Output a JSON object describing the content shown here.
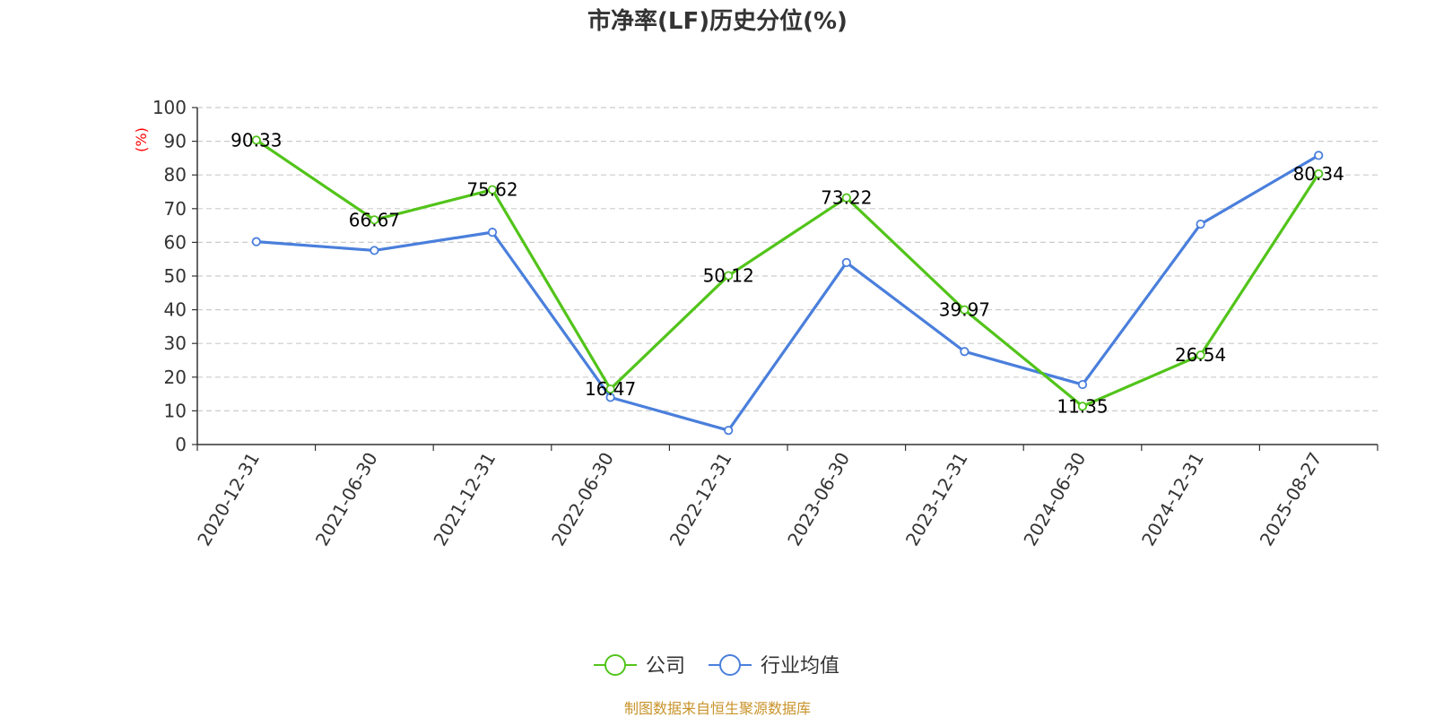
{
  "chart_data": {
    "type": "line",
    "title": "市净率(LF)历史分位(%)",
    "ylabel": "(%)",
    "ylim": [
      0,
      100
    ],
    "yticks": [
      0,
      10,
      20,
      30,
      40,
      50,
      60,
      70,
      80,
      90,
      100
    ],
    "grid": true,
    "legend_position": "bottom",
    "categories": [
      "2020-12-31",
      "2021-06-30",
      "2021-12-31",
      "2022-06-30",
      "2022-12-31",
      "2023-06-30",
      "2023-12-31",
      "2024-06-30",
      "2024-12-31",
      "2025-08-27"
    ],
    "series": [
      {
        "name": "公司",
        "color": "#52c41a",
        "values": [
          90.33,
          66.67,
          75.62,
          16.47,
          50.12,
          73.22,
          39.97,
          11.35,
          26.54,
          80.34
        ],
        "labels": [
          "90.33",
          "66.67",
          "75.62",
          "16.47",
          "50.12",
          "73.22",
          "39.97",
          "11.35",
          "26.54",
          "80.34"
        ]
      },
      {
        "name": "行业均值",
        "color": "#4a7fdc",
        "values": [
          60.2,
          57.6,
          63.0,
          14.0,
          4.2,
          54.0,
          27.6,
          17.8,
          65.4,
          85.8
        ]
      }
    ],
    "source": "制图数据来自恒生聚源数据库"
  }
}
